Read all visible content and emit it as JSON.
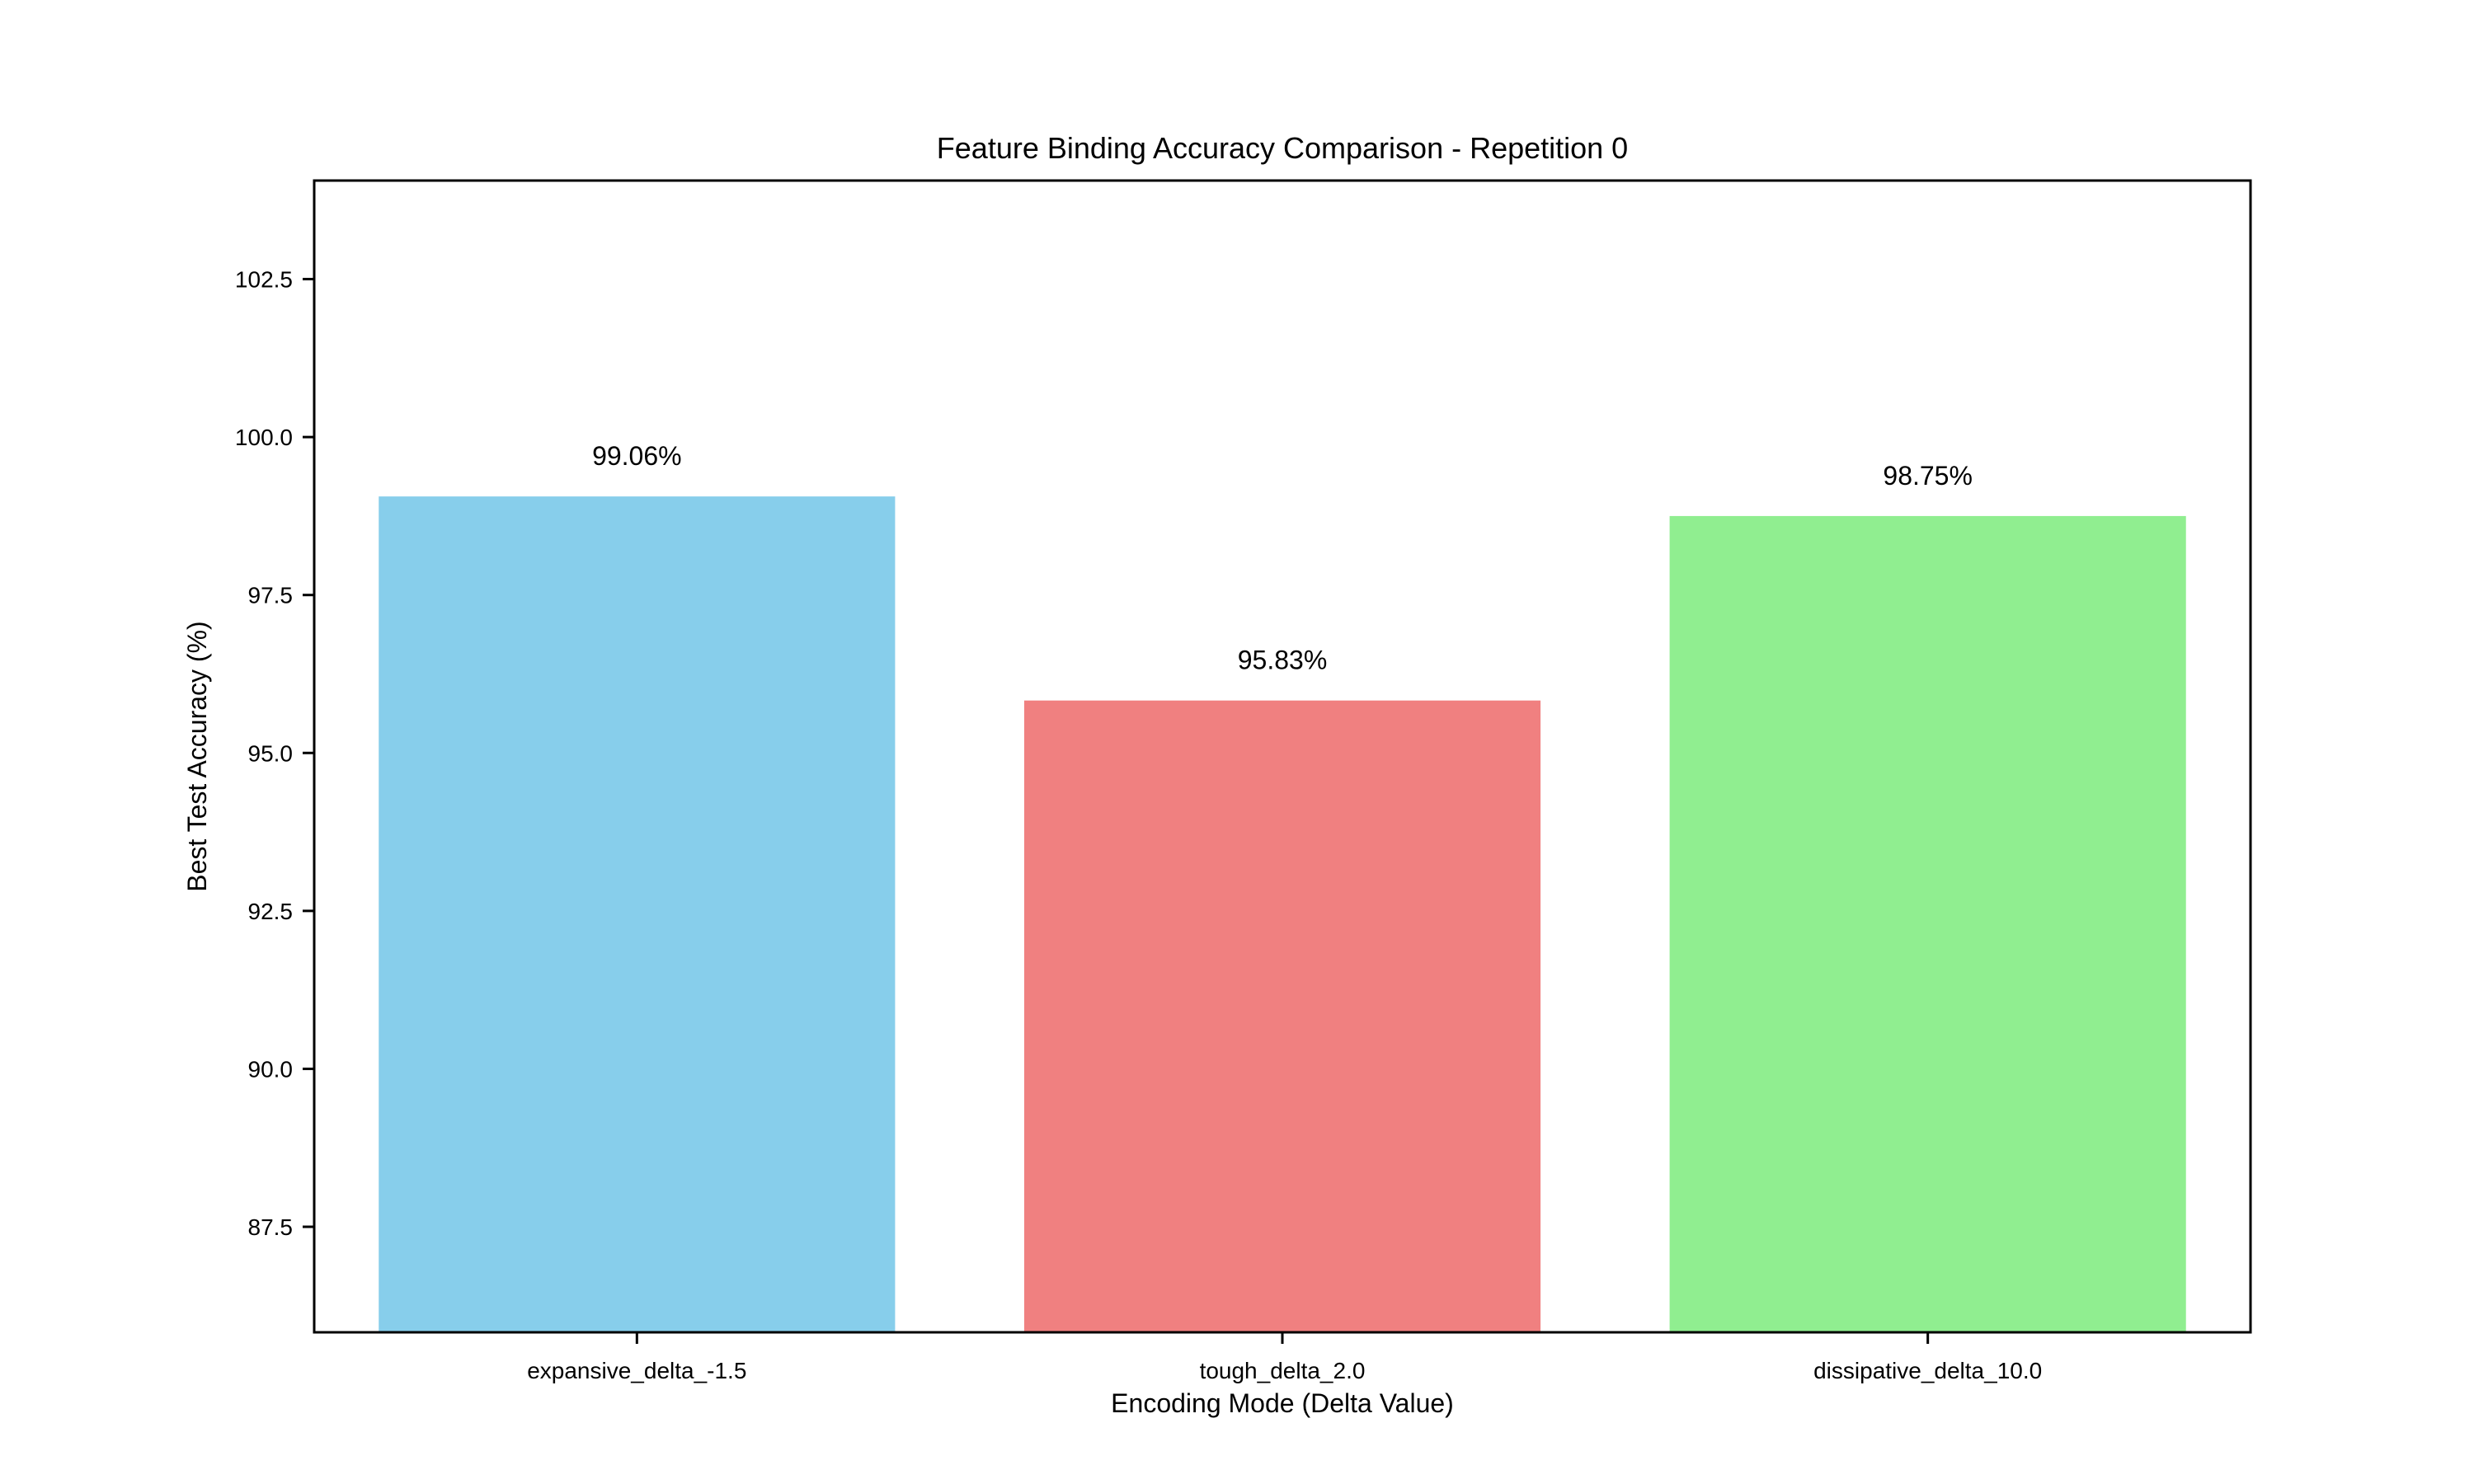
{
  "chart_data": {
    "type": "bar",
    "title": "Feature Binding Accuracy Comparison - Repetition 0",
    "xlabel": "Encoding Mode (Delta Value)",
    "ylabel": "Best Test Accuracy (%)",
    "categories": [
      "expansive_delta_-1.5",
      "tough_delta_2.0",
      "dissipative_delta_10.0"
    ],
    "values": [
      99.06,
      95.83,
      98.75
    ],
    "data_labels": [
      "99.06%",
      "95.83%",
      "98.75%"
    ],
    "colors": [
      "#87ceeb",
      "#f08080",
      "#90ee90"
    ],
    "ylim": [
      85.83,
      104.06
    ],
    "yticks": [
      87.5,
      90.0,
      92.5,
      95.0,
      97.5,
      100.0,
      102.5
    ],
    "ytick_labels": [
      "87.5",
      "90.0",
      "92.5",
      "95.0",
      "97.5",
      "100.0",
      "102.5"
    ],
    "grid": false,
    "legend": "none"
  }
}
